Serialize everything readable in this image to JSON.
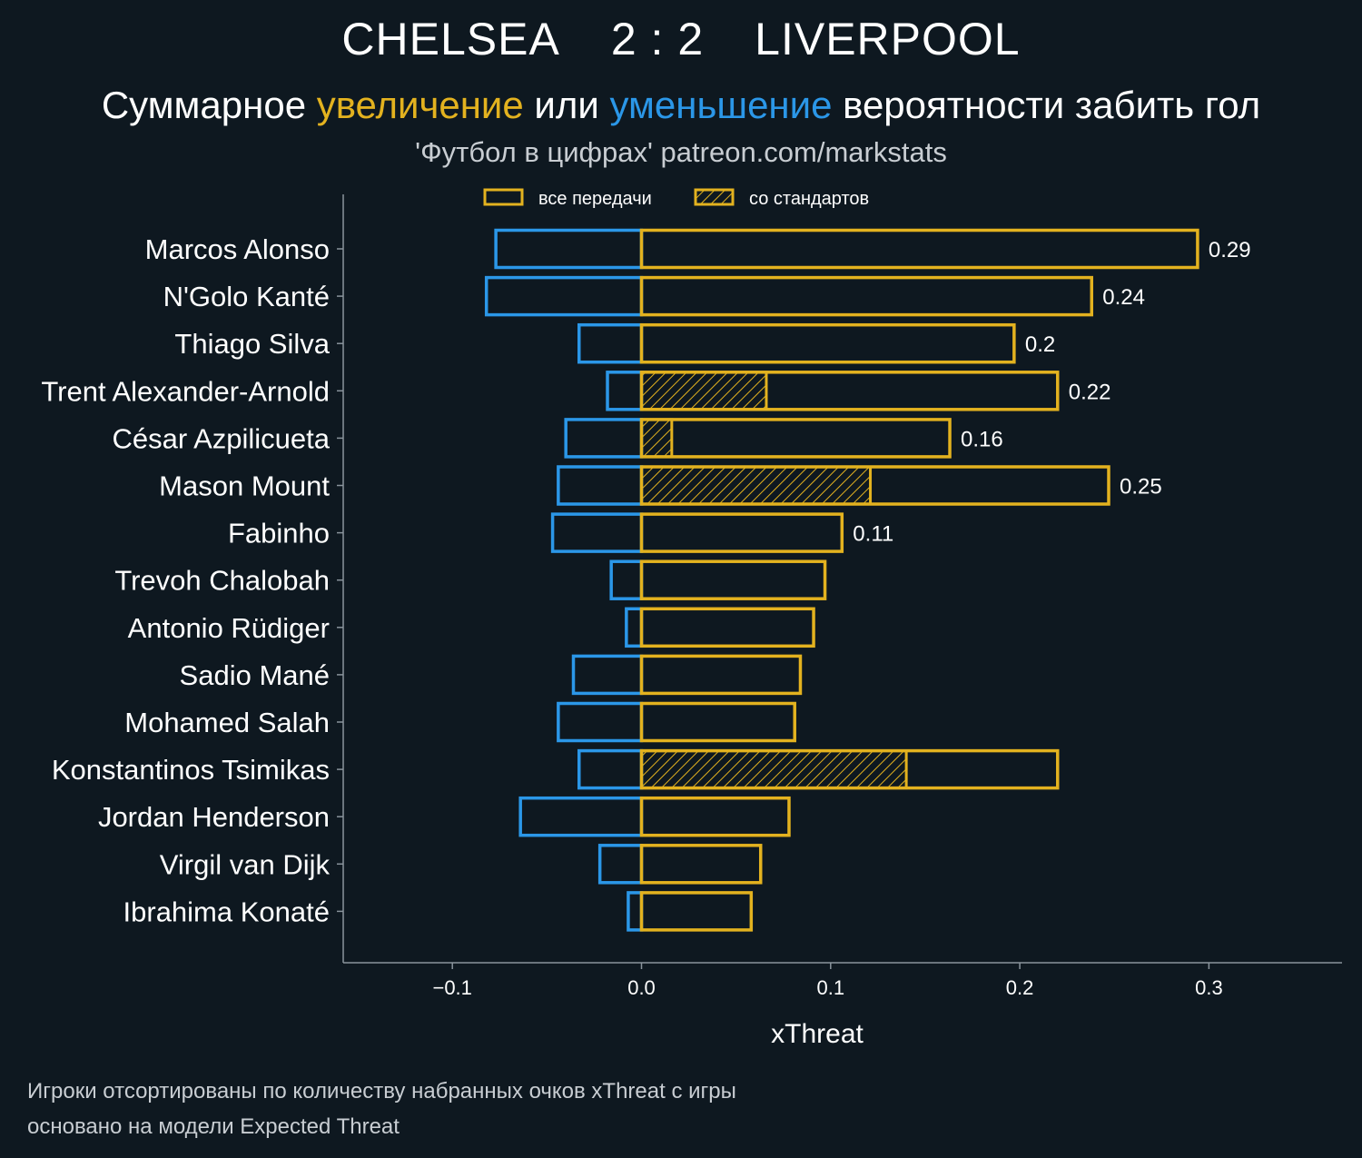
{
  "header": {
    "team_home": "CHELSEA",
    "score": "2 : 2",
    "team_away": "LIVERPOOL",
    "subtitle_part1": "Суммарное ",
    "subtitle_highlight_increase": "увеличение",
    "subtitle_part2": " или ",
    "subtitle_highlight_decrease": "уменьшение",
    "subtitle_part3": " вероятности забить гол",
    "source": "'Футбол в цифрах' patreon.com/markstats"
  },
  "footnotes": {
    "line1": "Игроки отсортированы по количеству набранных очков xThreat с игры",
    "line2": "основано на модели Expected Threat"
  },
  "colors": {
    "background": "#0e1820",
    "increase": "#e3b21f",
    "decrease": "#2b97e8",
    "axis": "#8a949c"
  },
  "chart_data": {
    "type": "bar",
    "orientation": "horizontal",
    "xlabel": "xThreat",
    "xlim": [
      -0.16,
      0.37
    ],
    "xticks": [
      -0.1,
      0.0,
      0.1,
      0.2,
      0.3
    ],
    "xtick_labels": [
      "−0.1",
      "0.0",
      "0.1",
      "0.2",
      "0.3"
    ],
    "grid": false,
    "legend": {
      "placement": "top",
      "entries": [
        "все передачи",
        "со стандартов"
      ]
    },
    "categories": [
      "Marcos Alonso",
      "N'Golo Kanté",
      "Thiago Silva",
      "Trent Alexander-Arnold",
      "César Azpilicueta",
      "Mason Mount",
      "Fabinho",
      "Trevoh Chalobah",
      "Antonio Rüdiger",
      "Sadio Mané",
      "Mohamed Salah",
      "Konstantinos Tsimikas",
      "Jordan Henderson",
      "Virgil van Dijk",
      "Ibrahima Konaté"
    ],
    "series": [
      {
        "name": "все передачи",
        "values": [
          0.294,
          0.238,
          0.197,
          0.22,
          0.163,
          0.247,
          0.106,
          0.097,
          0.091,
          0.084,
          0.081,
          0.22,
          0.078,
          0.063,
          0.058
        ]
      },
      {
        "name": "со стандартов",
        "values": [
          0,
          0,
          0,
          0.066,
          0.016,
          0.121,
          0,
          0,
          0,
          0,
          0,
          0.14,
          0,
          0,
          0
        ]
      },
      {
        "values": [
          -0.077,
          -0.082,
          -0.033,
          -0.018,
          -0.04,
          -0.044,
          -0.047,
          -0.016,
          -0.008,
          -0.036,
          -0.044,
          -0.033,
          -0.064,
          -0.022,
          -0.007
        ]
      }
    ],
    "value_labels": [
      "0.29",
      "0.24",
      "0.2",
      "0.22",
      "0.16",
      "0.25",
      "0.11",
      "",
      "",
      "",
      "",
      "",
      "",
      "",
      ""
    ]
  }
}
